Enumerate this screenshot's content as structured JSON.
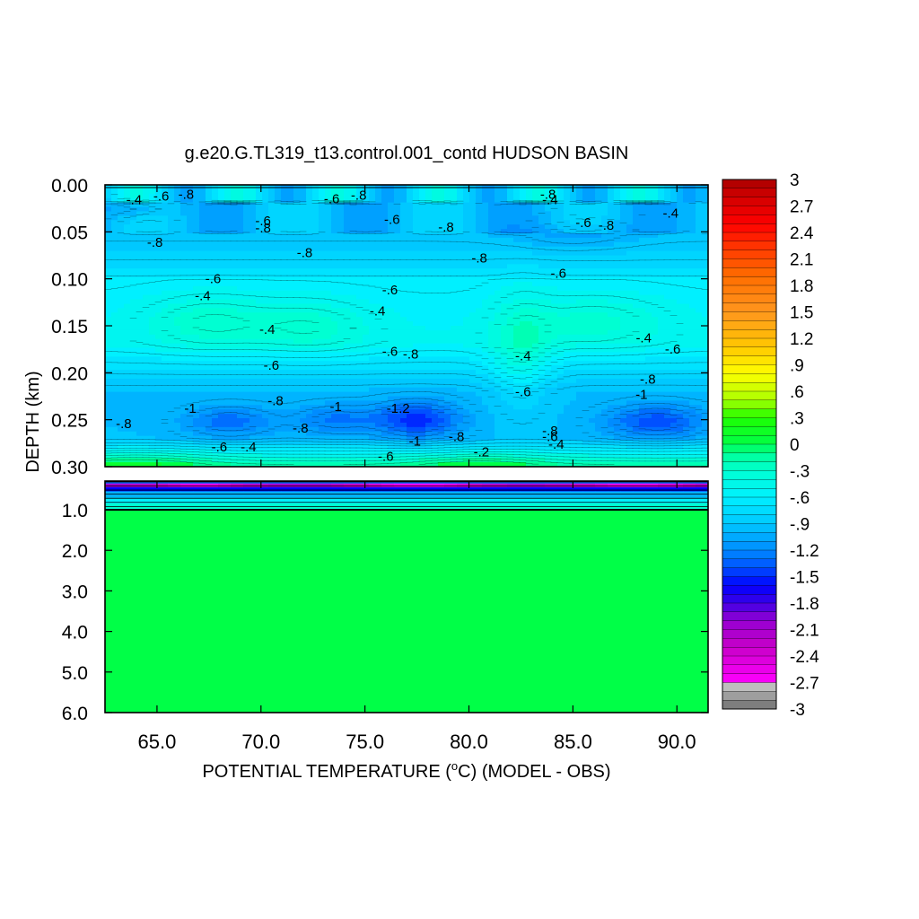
{
  "chart_data": {
    "type": "heatmap",
    "title": "g.e20.G.TL319_t13.control.001_contd HUDSON BASIN",
    "xlabel_pre": "POTENTIAL TEMPERATURE (",
    "xlabel_deg": "o",
    "xlabel_post": "C) (MODEL - OBS)",
    "ylabel": "DEPTH (km)",
    "xlim": [
      62.5,
      91.5
    ],
    "x_ticks": [
      "65.0",
      "70.0",
      "75.0",
      "80.0",
      "85.0",
      "90.0"
    ],
    "x_tick_values": [
      65,
      70,
      75,
      80,
      85,
      90
    ],
    "upper_panel": {
      "ylim": [
        0.0,
        0.3
      ],
      "y_ticks": [
        "0.00",
        "0.05",
        "0.10",
        "0.15",
        "0.20",
        "0.25",
        "0.30"
      ],
      "y_tick_values": [
        0.0,
        0.05,
        0.1,
        0.15,
        0.2,
        0.25,
        0.3
      ]
    },
    "lower_panel": {
      "ylim": [
        0.3,
        6.0
      ],
      "y_ticks": [
        "1.0",
        "2.0",
        "3.0",
        "4.0",
        "5.0",
        "6.0"
      ],
      "y_tick_values": [
        1.0,
        2.0,
        3.0,
        4.0,
        5.0,
        6.0
      ]
    },
    "colorbar": {
      "range": [
        -3,
        3
      ],
      "interval": 0.1,
      "tick_labels": [
        "3",
        "2.7",
        "2.4",
        "2.1",
        "1.8",
        "1.5",
        "1.2",
        ".9",
        ".6",
        ".3",
        "0",
        "-.3",
        "-.6",
        "-.9",
        "-1.2",
        "-1.5",
        "-1.8",
        "-2.1",
        "-2.4",
        "-2.7",
        "-3"
      ]
    },
    "upper_field": {
      "description_values_depth_km": [
        0.0,
        0.02,
        0.05,
        0.1,
        0.15,
        0.2,
        0.25,
        0.3
      ],
      "typical_anomaly": [
        -0.8,
        -0.7,
        -0.9,
        -0.8,
        -0.5,
        -0.7,
        -1.1,
        -0.2
      ]
    },
    "contour_labels": [
      {
        "text": "-.4",
        "x": 63.9,
        "y": 0.016
      },
      {
        "text": "-.6",
        "x": 65.2,
        "y": 0.012
      },
      {
        "text": "-.8",
        "x": 66.4,
        "y": 0.01
      },
      {
        "text": "-.6",
        "x": 73.4,
        "y": 0.015
      },
      {
        "text": "-.8",
        "x": 74.7,
        "y": 0.011
      },
      {
        "text": "-.8",
        "x": 83.8,
        "y": 0.01
      },
      {
        "text": "-.4",
        "x": 83.9,
        "y": 0.016
      },
      {
        "text": "-.6",
        "x": 70.1,
        "y": 0.038
      },
      {
        "text": "-.8",
        "x": 70.1,
        "y": 0.046
      },
      {
        "text": "-.6",
        "x": 76.3,
        "y": 0.037
      },
      {
        "text": "-.8",
        "x": 78.9,
        "y": 0.045
      },
      {
        "text": "-.6",
        "x": 85.5,
        "y": 0.04
      },
      {
        "text": "-.8",
        "x": 86.6,
        "y": 0.043
      },
      {
        "text": "-.4",
        "x": 89.7,
        "y": 0.03
      },
      {
        "text": "-.8",
        "x": 64.9,
        "y": 0.061
      },
      {
        "text": "-.8",
        "x": 72.1,
        "y": 0.072
      },
      {
        "text": "-.8",
        "x": 80.5,
        "y": 0.078
      },
      {
        "text": "-.6",
        "x": 67.7,
        "y": 0.1
      },
      {
        "text": "-.6",
        "x": 84.3,
        "y": 0.094
      },
      {
        "text": "-.6",
        "x": 76.2,
        "y": 0.112
      },
      {
        "text": "-.4",
        "x": 67.2,
        "y": 0.118
      },
      {
        "text": "-.4",
        "x": 75.6,
        "y": 0.134
      },
      {
        "text": "-.4",
        "x": 70.3,
        "y": 0.154
      },
      {
        "text": "-.4",
        "x": 88.4,
        "y": 0.163
      },
      {
        "text": "-.6",
        "x": 89.8,
        "y": 0.175
      },
      {
        "text": "-.6",
        "x": 76.2,
        "y": 0.177
      },
      {
        "text": "-.8",
        "x": 77.2,
        "y": 0.18
      },
      {
        "text": "-.4",
        "x": 82.6,
        "y": 0.182
      },
      {
        "text": "-.6",
        "x": 70.5,
        "y": 0.192
      },
      {
        "text": "-.8",
        "x": 88.6,
        "y": 0.207
      },
      {
        "text": "-.6",
        "x": 82.6,
        "y": 0.22
      },
      {
        "text": "-1",
        "x": 88.3,
        "y": 0.223
      },
      {
        "text": "-.8",
        "x": 70.7,
        "y": 0.23
      },
      {
        "text": "-1",
        "x": 66.6,
        "y": 0.238
      },
      {
        "text": "-1",
        "x": 73.6,
        "y": 0.236
      },
      {
        "text": "-1.2",
        "x": 76.6,
        "y": 0.238
      },
      {
        "text": "-.8",
        "x": 63.4,
        "y": 0.254
      },
      {
        "text": "-.8",
        "x": 71.9,
        "y": 0.259
      },
      {
        "text": "-.8",
        "x": 83.9,
        "y": 0.262
      },
      {
        "text": "-.6",
        "x": 83.9,
        "y": 0.268
      },
      {
        "text": "-.8",
        "x": 79.4,
        "y": 0.268
      },
      {
        "text": "-.4",
        "x": 84.2,
        "y": 0.276
      },
      {
        "text": "-1",
        "x": 77.4,
        "y": 0.273
      },
      {
        "text": "-.6",
        "x": 68.0,
        "y": 0.279
      },
      {
        "text": "-.4",
        "x": 69.4,
        "y": 0.279
      },
      {
        "text": "-.2",
        "x": 80.6,
        "y": 0.284
      },
      {
        "text": "-.6",
        "x": 76.0,
        "y": 0.289
      }
    ]
  }
}
